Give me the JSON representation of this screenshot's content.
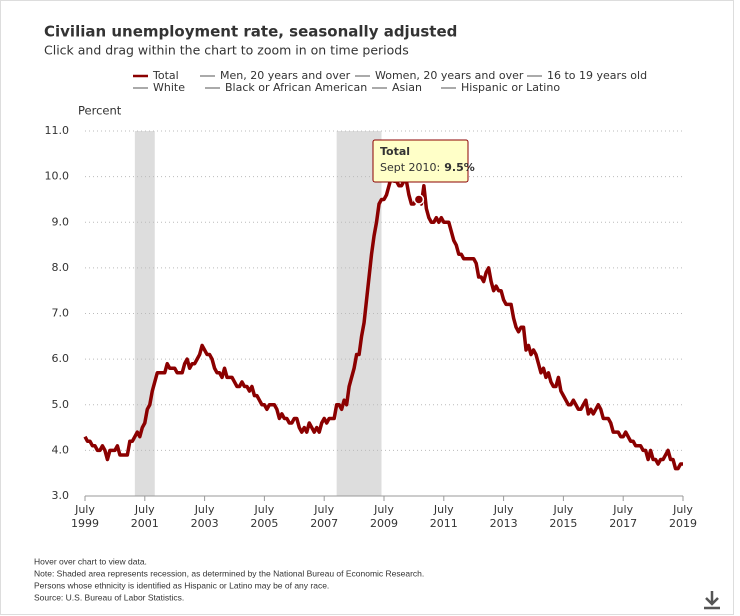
{
  "chart_data": {
    "type": "line",
    "title": "Civilian unemployment rate, seasonally adjusted",
    "subtitle": "Click and drag within the chart to zoom in on time periods",
    "y_label": "Percent",
    "x": [
      "1999-07",
      "1999-08",
      "1999-09",
      "1999-10",
      "1999-11",
      "1999-12",
      "2000-01",
      "2000-02",
      "2000-03",
      "2000-04",
      "2000-05",
      "2000-06",
      "2000-07",
      "2000-08",
      "2000-09",
      "2000-10",
      "2000-11",
      "2000-12",
      "2001-01",
      "2001-02",
      "2001-03",
      "2001-04",
      "2001-05",
      "2001-06",
      "2001-07",
      "2001-08",
      "2001-09",
      "2001-10",
      "2001-11",
      "2001-12",
      "2002-01",
      "2002-02",
      "2002-03",
      "2002-04",
      "2002-05",
      "2002-06",
      "2002-07",
      "2002-08",
      "2002-09",
      "2002-10",
      "2002-11",
      "2002-12",
      "2003-01",
      "2003-02",
      "2003-03",
      "2003-04",
      "2003-05",
      "2003-06",
      "2003-07",
      "2003-08",
      "2003-09",
      "2003-10",
      "2003-11",
      "2003-12",
      "2004-01",
      "2004-02",
      "2004-03",
      "2004-04",
      "2004-05",
      "2004-06",
      "2004-07",
      "2004-08",
      "2004-09",
      "2004-10",
      "2004-11",
      "2004-12",
      "2005-01",
      "2005-02",
      "2005-03",
      "2005-04",
      "2005-05",
      "2005-06",
      "2005-07",
      "2005-08",
      "2005-09",
      "2005-10",
      "2005-11",
      "2005-12",
      "2006-01",
      "2006-02",
      "2006-03",
      "2006-04",
      "2006-05",
      "2006-06",
      "2006-07",
      "2006-08",
      "2006-09",
      "2006-10",
      "2006-11",
      "2006-12",
      "2007-01",
      "2007-02",
      "2007-03",
      "2007-04",
      "2007-05",
      "2007-06",
      "2007-07",
      "2007-08",
      "2007-09",
      "2007-10",
      "2007-11",
      "2007-12",
      "2008-01",
      "2008-02",
      "2008-03",
      "2008-04",
      "2008-05",
      "2008-06",
      "2008-07",
      "2008-08",
      "2008-09",
      "2008-10",
      "2008-11",
      "2008-12",
      "2009-01",
      "2009-02",
      "2009-03",
      "2009-04",
      "2009-05",
      "2009-06",
      "2009-07",
      "2009-08",
      "2009-09",
      "2009-10",
      "2009-11",
      "2009-12",
      "2010-01",
      "2010-02",
      "2010-03",
      "2010-04",
      "2010-05",
      "2010-06",
      "2010-07",
      "2010-08",
      "2010-09",
      "2010-10",
      "2010-11",
      "2010-12",
      "2011-01",
      "2011-02",
      "2011-03",
      "2011-04",
      "2011-05",
      "2011-06",
      "2011-07",
      "2011-08",
      "2011-09",
      "2011-10",
      "2011-11",
      "2011-12",
      "2012-01",
      "2012-02",
      "2012-03",
      "2012-04",
      "2012-05",
      "2012-06",
      "2012-07",
      "2012-08",
      "2012-09",
      "2012-10",
      "2012-11",
      "2012-12",
      "2013-01",
      "2013-02",
      "2013-03",
      "2013-04",
      "2013-05",
      "2013-06",
      "2013-07",
      "2013-08",
      "2013-09",
      "2013-10",
      "2013-11",
      "2013-12",
      "2014-01",
      "2014-02",
      "2014-03",
      "2014-04",
      "2014-05",
      "2014-06",
      "2014-07",
      "2014-08",
      "2014-09",
      "2014-10",
      "2014-11",
      "2014-12",
      "2015-01",
      "2015-02",
      "2015-03",
      "2015-04",
      "2015-05",
      "2015-06",
      "2015-07",
      "2015-08",
      "2015-09",
      "2015-10",
      "2015-11",
      "2015-12",
      "2016-01",
      "2016-02",
      "2016-03",
      "2016-04",
      "2016-05",
      "2016-06",
      "2016-07",
      "2016-08",
      "2016-09",
      "2016-10",
      "2016-11",
      "2016-12",
      "2017-01",
      "2017-02",
      "2017-03",
      "2017-04",
      "2017-05",
      "2017-06",
      "2017-07",
      "2017-08",
      "2017-09",
      "2017-10",
      "2017-11",
      "2017-12",
      "2018-01",
      "2018-02",
      "2018-03",
      "2018-04",
      "2018-05",
      "2018-06",
      "2018-07",
      "2018-08",
      "2018-09",
      "2018-10",
      "2018-11",
      "2018-12",
      "2019-01",
      "2019-02",
      "2019-03",
      "2019-04",
      "2019-05",
      "2019-06",
      "2019-07"
    ],
    "series": [
      {
        "name": "Total",
        "color": "#8b0000",
        "values": [
          4.3,
          4.2,
          4.2,
          4.1,
          4.1,
          4.0,
          4.0,
          4.1,
          4.0,
          3.8,
          4.0,
          4.0,
          4.0,
          4.1,
          3.9,
          3.9,
          3.9,
          3.9,
          4.2,
          4.2,
          4.3,
          4.4,
          4.3,
          4.5,
          4.6,
          4.9,
          5.0,
          5.3,
          5.5,
          5.7,
          5.7,
          5.7,
          5.7,
          5.9,
          5.8,
          5.8,
          5.8,
          5.7,
          5.7,
          5.7,
          5.9,
          6.0,
          5.8,
          5.9,
          5.9,
          6.0,
          6.1,
          6.3,
          6.2,
          6.1,
          6.1,
          6.0,
          5.8,
          5.7,
          5.7,
          5.6,
          5.8,
          5.6,
          5.6,
          5.6,
          5.5,
          5.4,
          5.4,
          5.5,
          5.4,
          5.4,
          5.3,
          5.4,
          5.2,
          5.2,
          5.1,
          5.0,
          5.0,
          4.9,
          5.0,
          5.0,
          5.0,
          4.9,
          4.7,
          4.8,
          4.7,
          4.7,
          4.6,
          4.6,
          4.7,
          4.7,
          4.5,
          4.4,
          4.5,
          4.4,
          4.6,
          4.5,
          4.4,
          4.5,
          4.4,
          4.6,
          4.7,
          4.6,
          4.7,
          4.7,
          4.7,
          5.0,
          5.0,
          4.9,
          5.1,
          5.0,
          5.4,
          5.6,
          5.8,
          6.1,
          6.1,
          6.5,
          6.8,
          7.3,
          7.8,
          8.3,
          8.7,
          9.0,
          9.4,
          9.5,
          9.5,
          9.6,
          9.8,
          10.0,
          9.9,
          9.9,
          9.8,
          9.8,
          9.9,
          9.9,
          9.6,
          9.4,
          9.4,
          9.5,
          9.5,
          9.4,
          9.8,
          9.3,
          9.1,
          9.0,
          9.0,
          9.1,
          9.0,
          9.1,
          9.0,
          9.0,
          9.0,
          8.8,
          8.6,
          8.5,
          8.3,
          8.3,
          8.2,
          8.2,
          8.2,
          8.2,
          8.2,
          8.1,
          7.8,
          7.8,
          7.7,
          7.9,
          8.0,
          7.7,
          7.5,
          7.6,
          7.5,
          7.5,
          7.3,
          7.2,
          7.2,
          7.2,
          6.9,
          6.7,
          6.6,
          6.7,
          6.7,
          6.2,
          6.3,
          6.1,
          6.2,
          6.1,
          5.9,
          5.7,
          5.8,
          5.6,
          5.7,
          5.5,
          5.4,
          5.4,
          5.6,
          5.3,
          5.2,
          5.1,
          5.0,
          5.0,
          5.1,
          5.0,
          4.9,
          4.9,
          5.0,
          5.1,
          4.8,
          4.9,
          4.8,
          4.9,
          5.0,
          4.9,
          4.7,
          4.7,
          4.7,
          4.6,
          4.4,
          4.4,
          4.4,
          4.3,
          4.3,
          4.4,
          4.3,
          4.2,
          4.2,
          4.1,
          4.1,
          4.1,
          4.0,
          4.0,
          3.8,
          4.0,
          3.8,
          3.8,
          3.7,
          3.8,
          3.8,
          3.9,
          4.0,
          3.8,
          3.8,
          3.6,
          3.6,
          3.7,
          3.7
        ]
      }
    ],
    "hidden_series": [
      {
        "name": "Men, 20 years and over",
        "color": "#aaaaaa"
      },
      {
        "name": "Women, 20 years and over",
        "color": "#aaaaaa"
      },
      {
        "name": "16 to 19 years old",
        "color": "#aaaaaa"
      },
      {
        "name": "White",
        "color": "#aaaaaa"
      },
      {
        "name": "Black or African American",
        "color": "#aaaaaa"
      },
      {
        "name": "Asian",
        "color": "#aaaaaa"
      },
      {
        "name": "Hispanic or Latino",
        "color": "#aaaaaa"
      }
    ],
    "recessions": [
      {
        "start": "2001-03",
        "end": "2001-11"
      },
      {
        "start": "2007-12",
        "end": "2009-06"
      }
    ],
    "xlim": [
      "1999-07",
      "2019-07"
    ],
    "xticks": [
      {
        "value": "1999-07",
        "label": [
          "July",
          "1999"
        ]
      },
      {
        "value": "2001-07",
        "label": [
          "July",
          "2001"
        ]
      },
      {
        "value": "2003-07",
        "label": [
          "July",
          "2003"
        ]
      },
      {
        "value": "2005-07",
        "label": [
          "July",
          "2005"
        ]
      },
      {
        "value": "2007-07",
        "label": [
          "July",
          "2007"
        ]
      },
      {
        "value": "2009-07",
        "label": [
          "July",
          "2009"
        ]
      },
      {
        "value": "2011-07",
        "label": [
          "July",
          "2011"
        ]
      },
      {
        "value": "2013-07",
        "label": [
          "July",
          "2013"
        ]
      },
      {
        "value": "2015-07",
        "label": [
          "July",
          "2015"
        ]
      },
      {
        "value": "2017-07",
        "label": [
          "July",
          "2017"
        ]
      },
      {
        "value": "2019-07",
        "label": [
          "July",
          "2019"
        ]
      }
    ],
    "ylim": [
      3,
      11
    ],
    "yticks": [
      {
        "value": 3,
        "label": "3.0"
      },
      {
        "value": 4,
        "label": "4.0"
      },
      {
        "value": 5,
        "label": "5.0"
      },
      {
        "value": 6,
        "label": "6.0"
      },
      {
        "value": 7,
        "label": "7.0"
      },
      {
        "value": 8,
        "label": "8.0"
      },
      {
        "value": 9,
        "label": "9.0"
      },
      {
        "value": 10,
        "label": "10.0"
      },
      {
        "value": 11,
        "label": "11.0"
      }
    ],
    "grid": true,
    "tooltip": {
      "name": "Total",
      "date": "Sept 2010:",
      "value": 9.5,
      "value_label": "9.5%"
    },
    "notes": [
      "Hover over chart to view data.",
      "Note: Shaded area represents recession, as determined by the National Bureau of Economic Research.",
      "Persons whose ethnicity is identified as Hispanic or Latino may be of any race.",
      "Source: U.S. Bureau of Labor Statistics."
    ]
  }
}
